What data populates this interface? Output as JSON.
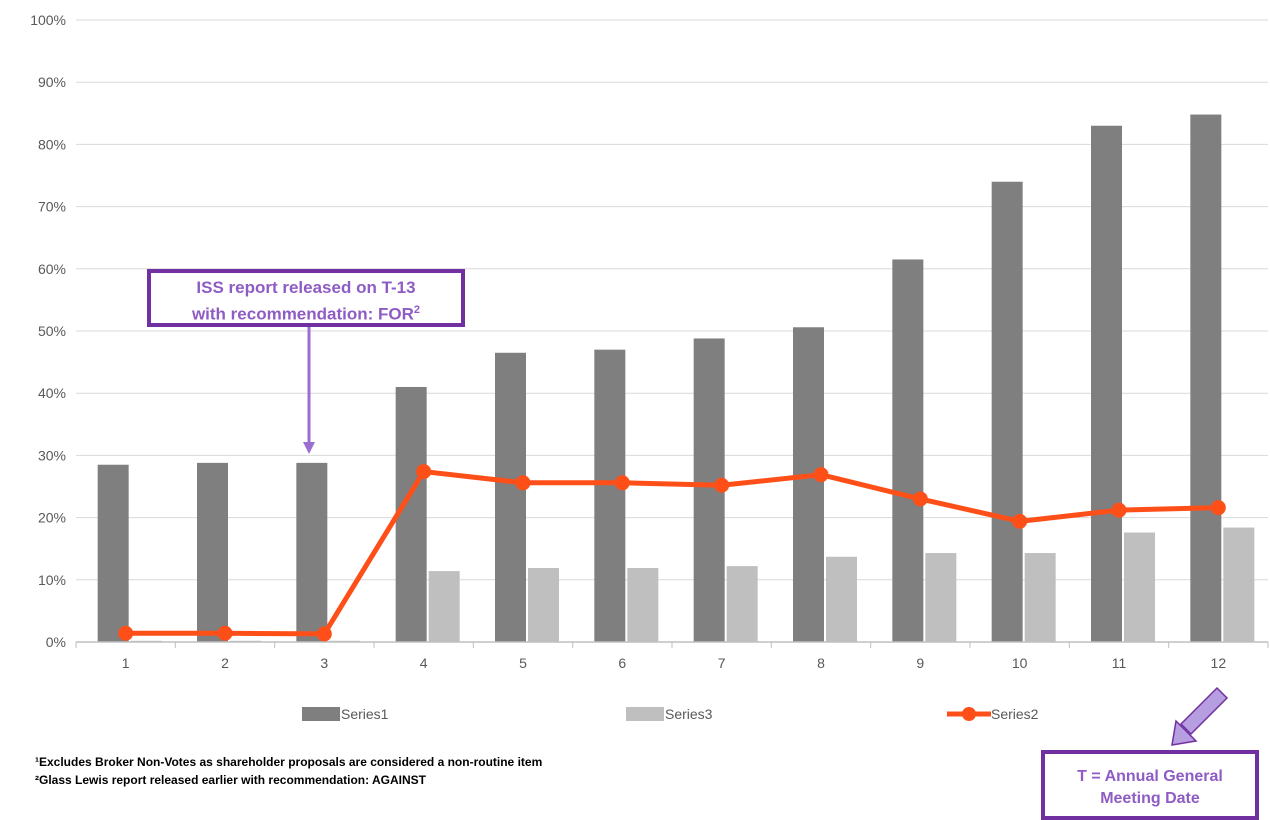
{
  "chart_data": {
    "type": "bar",
    "categories": [
      "1",
      "2",
      "3",
      "4",
      "5",
      "6",
      "7",
      "8",
      "9",
      "10",
      "11",
      "12"
    ],
    "y_ticks": [
      "0%",
      "10%",
      "20%",
      "30%",
      "40%",
      "50%",
      "60%",
      "70%",
      "80%",
      "90%",
      "100%"
    ],
    "ylim": [
      0,
      100
    ],
    "grid": true,
    "legend_position": "bottom",
    "series": [
      {
        "name": "Series1",
        "kind": "bar",
        "color": "#7f7f7f",
        "values": [
          28.5,
          28.8,
          28.8,
          41.0,
          46.5,
          47.0,
          48.8,
          50.6,
          61.5,
          74.0,
          83.0,
          84.8
        ]
      },
      {
        "name": "Series3",
        "kind": "bar",
        "color": "#bfbfbf",
        "values": [
          0.2,
          0.2,
          0.2,
          11.4,
          11.9,
          11.9,
          12.2,
          13.7,
          14.3,
          14.3,
          17.6,
          18.4
        ]
      },
      {
        "name": "Series2",
        "kind": "line",
        "color": "#ff4f19",
        "values": [
          1.4,
          1.4,
          1.3,
          27.4,
          25.6,
          25.6,
          25.2,
          26.9,
          23.0,
          19.4,
          21.2,
          21.6
        ]
      }
    ],
    "legend_order": [
      "Series1",
      "Series3",
      "Series2"
    ]
  },
  "annotations": {
    "iss_line1": "ISS report released on T-13",
    "iss_line2": "with recommendation: FOR",
    "iss_sup": "2",
    "agm_line1": "T = Annual General",
    "agm_line2": "Meeting Date"
  },
  "footnotes": {
    "note1": "¹Excludes Broker Non-Votes as shareholder proposals are considered a  non-routine item",
    "note2": "²Glass Lewis report released earlier with recommendation: AGAINST"
  },
  "colors": {
    "accent_purple": "#7030a0",
    "arrow_purple": "#9b6fd1"
  }
}
